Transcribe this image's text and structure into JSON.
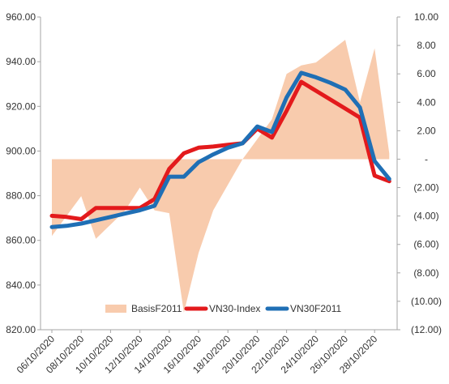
{
  "chart_data": {
    "type": "line",
    "categories": [
      "06/10/2020",
      "07/10/2020",
      "08/10/2020",
      "09/10/2020",
      "10/10/2020",
      "11/10/2020",
      "12/10/2020",
      "13/10/2020",
      "14/10/2020",
      "15/10/2020",
      "16/10/2020",
      "17/10/2020",
      "18/10/2020",
      "19/10/2020",
      "20/10/2020",
      "21/10/2020",
      "22/10/2020",
      "23/10/2020",
      "24/10/2020",
      "25/10/2020",
      "26/10/2020",
      "27/10/2020",
      "28/10/2020",
      "29/10/2020"
    ],
    "x_tick_labels": [
      "06/10/2020",
      "08/10/2020",
      "10/10/2020",
      "12/10/2020",
      "14/10/2020",
      "16/10/2020",
      "18/10/2020",
      "20/10/2020",
      "22/10/2020",
      "24/10/2020",
      "26/10/2020",
      "28/10/2020"
    ],
    "y_left": {
      "min": 820,
      "max": 960,
      "step": 20,
      "tick_labels": [
        "820.00",
        "840.00",
        "860.00",
        "880.00",
        "900.00",
        "920.00",
        "940.00",
        "960.00"
      ]
    },
    "y_right": {
      "min": -12,
      "max": 10,
      "step": 2,
      "tick_labels": [
        "(12.00)",
        "(10.00)",
        "(8.00)",
        "(6.00)",
        "(4.00)",
        "(2.00)",
        "-",
        "2.00",
        "4.00",
        "6.00",
        "8.00",
        "10.00"
      ]
    },
    "series": [
      {
        "name": "BasisF2011",
        "kind": "area",
        "axis": "right",
        "color": "#f8cbad",
        "values": [
          -5.4,
          -4.0,
          -2.6,
          -5.6,
          -4.6,
          -3.6,
          -2.0,
          -3.6,
          -3.8,
          -10.8,
          -6.6,
          -3.6,
          -1.8,
          0.0,
          1.4,
          2.8,
          6.0,
          6.6,
          6.8,
          7.6,
          8.4,
          4.0,
          7.8,
          0.4
        ]
      },
      {
        "name": "VN30-Index",
        "kind": "line",
        "axis": "left",
        "color": "#e31a1c",
        "values": [
          871,
          870.5,
          869.5,
          874.5,
          874.5,
          874.5,
          874.5,
          878.5,
          892,
          899,
          901.5,
          902,
          902.8,
          903.5,
          910,
          906,
          918,
          931,
          927,
          923,
          919,
          915,
          889,
          886.5
        ]
      },
      {
        "name": "VN30F2011",
        "kind": "line",
        "axis": "left",
        "color": "#1f6fb5",
        "values": [
          866,
          866.5,
          867.5,
          869,
          870.5,
          872,
          873.5,
          875.5,
          888.5,
          888.5,
          895,
          898.5,
          901.5,
          903.5,
          911,
          908.5,
          924,
          935,
          933,
          930.5,
          927.5,
          919.5,
          895.5,
          887.5
        ]
      }
    ],
    "legend": {
      "position": "bottom-inside",
      "entries": [
        "BasisF2011",
        "VN30-Index",
        "VN30F2011"
      ]
    },
    "gridlines": false
  }
}
